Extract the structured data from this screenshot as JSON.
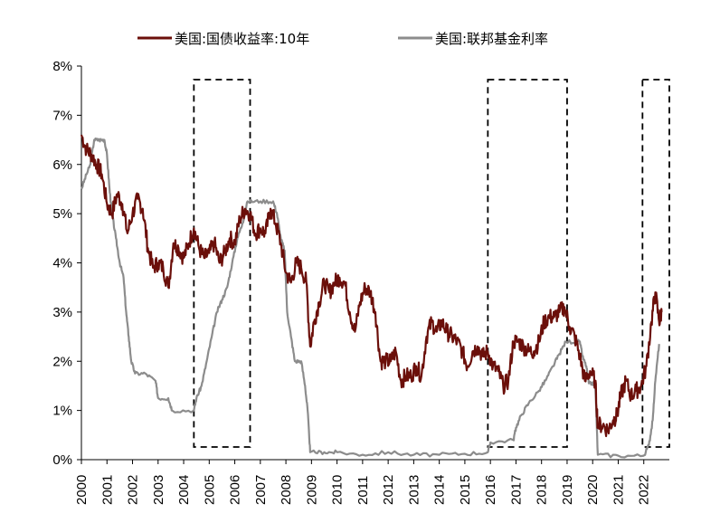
{
  "chart_data": {
    "type": "line",
    "title": "",
    "xlabel": "",
    "ylabel": "",
    "x_ticks": [
      "2000",
      "2001",
      "2002",
      "2003",
      "2004",
      "2005",
      "2006",
      "2007",
      "2008",
      "2009",
      "2010",
      "2011",
      "2012",
      "2013",
      "2014",
      "2015",
      "2016",
      "2017",
      "2018",
      "2019",
      "2020",
      "2021",
      "2022"
    ],
    "y_ticks": [
      "0%",
      "1%",
      "2%",
      "3%",
      "4%",
      "5%",
      "6%",
      "7%",
      "8%"
    ],
    "xlim": [
      2000,
      2023
    ],
    "ylim": [
      0,
      8
    ],
    "grid": false,
    "legend_position": "top",
    "series": [
      {
        "name": "美国:国债收益率:10年",
        "color": "#6b0f0a",
        "points": [
          [
            2000.0,
            6.6
          ],
          [
            2000.2,
            6.3
          ],
          [
            2000.4,
            6.2
          ],
          [
            2000.6,
            6.0
          ],
          [
            2000.8,
            5.8
          ],
          [
            2001.0,
            5.2
          ],
          [
            2001.2,
            5.0
          ],
          [
            2001.4,
            5.4
          ],
          [
            2001.6,
            5.2
          ],
          [
            2001.8,
            4.6
          ],
          [
            2002.0,
            5.0
          ],
          [
            2002.2,
            5.3
          ],
          [
            2002.4,
            5.1
          ],
          [
            2002.6,
            4.3
          ],
          [
            2002.8,
            3.9
          ],
          [
            2003.0,
            4.0
          ],
          [
            2003.2,
            3.9
          ],
          [
            2003.4,
            3.5
          ],
          [
            2003.6,
            4.4
          ],
          [
            2003.8,
            4.3
          ],
          [
            2004.0,
            4.1
          ],
          [
            2004.2,
            4.4
          ],
          [
            2004.4,
            4.7
          ],
          [
            2004.6,
            4.3
          ],
          [
            2004.8,
            4.1
          ],
          [
            2005.0,
            4.2
          ],
          [
            2005.2,
            4.4
          ],
          [
            2005.4,
            4.0
          ],
          [
            2005.6,
            4.2
          ],
          [
            2005.8,
            4.5
          ],
          [
            2006.0,
            4.4
          ],
          [
            2006.2,
            4.9
          ],
          [
            2006.4,
            5.1
          ],
          [
            2006.6,
            5.0
          ],
          [
            2006.8,
            4.6
          ],
          [
            2007.0,
            4.7
          ],
          [
            2007.2,
            4.6
          ],
          [
            2007.4,
            5.1
          ],
          [
            2007.6,
            4.8
          ],
          [
            2007.8,
            4.4
          ],
          [
            2008.0,
            3.8
          ],
          [
            2008.2,
            3.6
          ],
          [
            2008.4,
            4.0
          ],
          [
            2008.6,
            3.9
          ],
          [
            2008.8,
            3.6
          ],
          [
            2008.95,
            2.3
          ],
          [
            2009.1,
            2.8
          ],
          [
            2009.3,
            3.2
          ],
          [
            2009.5,
            3.6
          ],
          [
            2009.7,
            3.4
          ],
          [
            2009.9,
            3.6
          ],
          [
            2010.1,
            3.7
          ],
          [
            2010.3,
            3.6
          ],
          [
            2010.5,
            3.0
          ],
          [
            2010.7,
            2.6
          ],
          [
            2010.9,
            3.2
          ],
          [
            2011.1,
            3.5
          ],
          [
            2011.3,
            3.4
          ],
          [
            2011.5,
            3.0
          ],
          [
            2011.7,
            2.0
          ],
          [
            2011.9,
            2.0
          ],
          [
            2012.1,
            2.0
          ],
          [
            2012.3,
            2.2
          ],
          [
            2012.5,
            1.6
          ],
          [
            2012.7,
            1.7
          ],
          [
            2012.9,
            1.7
          ],
          [
            2013.1,
            1.9
          ],
          [
            2013.3,
            1.7
          ],
          [
            2013.5,
            2.5
          ],
          [
            2013.7,
            2.8
          ],
          [
            2013.9,
            2.6
          ],
          [
            2014.1,
            2.8
          ],
          [
            2014.3,
            2.6
          ],
          [
            2014.5,
            2.5
          ],
          [
            2014.7,
            2.4
          ],
          [
            2014.9,
            2.2
          ],
          [
            2015.1,
            1.9
          ],
          [
            2015.3,
            2.2
          ],
          [
            2015.5,
            2.3
          ],
          [
            2015.7,
            2.1
          ],
          [
            2015.9,
            2.2
          ],
          [
            2016.1,
            1.9
          ],
          [
            2016.3,
            1.8
          ],
          [
            2016.5,
            1.5
          ],
          [
            2016.7,
            1.6
          ],
          [
            2016.9,
            2.4
          ],
          [
            2017.1,
            2.4
          ],
          [
            2017.3,
            2.3
          ],
          [
            2017.5,
            2.2
          ],
          [
            2017.7,
            2.2
          ],
          [
            2017.9,
            2.4
          ],
          [
            2018.1,
            2.8
          ],
          [
            2018.3,
            2.9
          ],
          [
            2018.5,
            2.9
          ],
          [
            2018.7,
            3.0
          ],
          [
            2018.9,
            3.1
          ],
          [
            2019.1,
            2.7
          ],
          [
            2019.3,
            2.5
          ],
          [
            2019.5,
            2.1
          ],
          [
            2019.7,
            1.6
          ],
          [
            2019.9,
            1.8
          ],
          [
            2020.1,
            1.6
          ],
          [
            2020.2,
            0.7
          ],
          [
            2020.4,
            0.7
          ],
          [
            2020.6,
            0.6
          ],
          [
            2020.8,
            0.8
          ],
          [
            2020.95,
            0.9
          ],
          [
            2021.1,
            1.3
          ],
          [
            2021.3,
            1.6
          ],
          [
            2021.5,
            1.3
          ],
          [
            2021.7,
            1.4
          ],
          [
            2021.9,
            1.5
          ],
          [
            2022.1,
            1.9
          ],
          [
            2022.3,
            2.8
          ],
          [
            2022.45,
            3.4
          ],
          [
            2022.6,
            2.8
          ],
          [
            2022.7,
            3.0
          ]
        ]
      },
      {
        "name": "美国:联邦基金利率",
        "color": "#8c8c8c",
        "points": [
          [
            2000.0,
            5.5
          ],
          [
            2000.2,
            5.8
          ],
          [
            2000.35,
            6.0
          ],
          [
            2000.5,
            6.5
          ],
          [
            2000.7,
            6.5
          ],
          [
            2000.9,
            6.5
          ],
          [
            2001.0,
            6.2
          ],
          [
            2001.1,
            5.5
          ],
          [
            2001.2,
            5.0
          ],
          [
            2001.35,
            4.5
          ],
          [
            2001.5,
            4.0
          ],
          [
            2001.65,
            3.7
          ],
          [
            2001.75,
            3.0
          ],
          [
            2001.85,
            2.5
          ],
          [
            2001.95,
            2.0
          ],
          [
            2002.1,
            1.75
          ],
          [
            2002.5,
            1.75
          ],
          [
            2002.9,
            1.6
          ],
          [
            2003.0,
            1.25
          ],
          [
            2003.4,
            1.25
          ],
          [
            2003.55,
            1.0
          ],
          [
            2004.4,
            1.0
          ],
          [
            2004.5,
            1.25
          ],
          [
            2004.7,
            1.5
          ],
          [
            2004.9,
            2.0
          ],
          [
            2005.1,
            2.5
          ],
          [
            2005.3,
            3.0
          ],
          [
            2005.5,
            3.25
          ],
          [
            2005.7,
            3.5
          ],
          [
            2005.9,
            4.0
          ],
          [
            2006.1,
            4.5
          ],
          [
            2006.3,
            4.8
          ],
          [
            2006.5,
            5.25
          ],
          [
            2007.0,
            5.25
          ],
          [
            2007.5,
            5.25
          ],
          [
            2007.65,
            5.0
          ],
          [
            2007.8,
            4.5
          ],
          [
            2007.95,
            4.25
          ],
          [
            2008.05,
            3.0
          ],
          [
            2008.2,
            2.5
          ],
          [
            2008.35,
            2.0
          ],
          [
            2008.6,
            2.0
          ],
          [
            2008.75,
            1.5
          ],
          [
            2008.85,
            1.0
          ],
          [
            2008.95,
            0.15
          ],
          [
            2009.5,
            0.15
          ],
          [
            2010.0,
            0.15
          ],
          [
            2011.0,
            0.1
          ],
          [
            2012.0,
            0.15
          ],
          [
            2013.0,
            0.1
          ],
          [
            2014.0,
            0.1
          ],
          [
            2015.0,
            0.12
          ],
          [
            2015.9,
            0.15
          ],
          [
            2016.0,
            0.35
          ],
          [
            2016.9,
            0.4
          ],
          [
            2017.0,
            0.65
          ],
          [
            2017.2,
            0.9
          ],
          [
            2017.5,
            1.15
          ],
          [
            2017.9,
            1.4
          ],
          [
            2018.2,
            1.65
          ],
          [
            2018.45,
            1.9
          ],
          [
            2018.7,
            2.15
          ],
          [
            2018.95,
            2.4
          ],
          [
            2019.5,
            2.4
          ],
          [
            2019.6,
            2.1
          ],
          [
            2019.75,
            1.9
          ],
          [
            2019.85,
            1.55
          ],
          [
            2020.1,
            1.55
          ],
          [
            2020.2,
            0.1
          ],
          [
            2021.0,
            0.08
          ],
          [
            2022.0,
            0.08
          ],
          [
            2022.2,
            0.3
          ],
          [
            2022.35,
            0.8
          ],
          [
            2022.45,
            1.6
          ],
          [
            2022.6,
            2.35
          ]
        ]
      }
    ],
    "highlight_ranges": [
      [
        2004.4,
        2006.6
      ],
      [
        2015.9,
        2019.0
      ],
      [
        2021.95,
        2023.0
      ]
    ]
  }
}
